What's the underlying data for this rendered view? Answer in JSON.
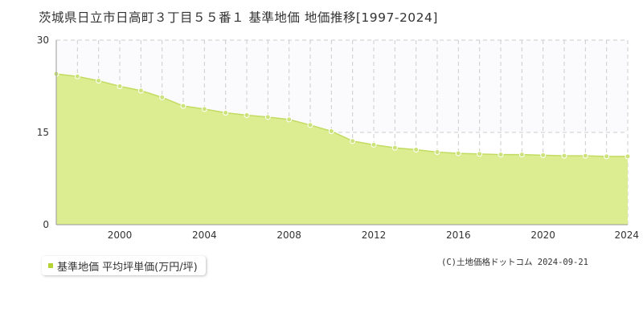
{
  "title": "茨城県日立市日高町３丁目５５番１ 基準地価 地価推移[1997-2024]",
  "legend": {
    "label": "基準地価 平均坪単価(万円/坪)",
    "color": "#b5d334"
  },
  "copyright": "(C)土地価格ドットコム 2024-09-21",
  "colors": {
    "area_fill": "#dcec91",
    "line": "#c2dc62",
    "point": "#cbe37a",
    "grid": "#cccccc"
  },
  "chart_data": {
    "type": "area",
    "title": "",
    "xlabel": "",
    "ylabel": "",
    "xlim": [
      1997,
      2024
    ],
    "ylim": [
      0,
      30
    ],
    "yticks": [
      0,
      15,
      30
    ],
    "xticks": [
      2000,
      2004,
      2008,
      2012,
      2016,
      2020,
      2024
    ],
    "grid": true,
    "legend_position": "bottom-left",
    "series": [
      {
        "name": "基準地価 平均坪単価(万円/坪)",
        "x": [
          1997,
          1998,
          1999,
          2000,
          2001,
          2002,
          2003,
          2004,
          2005,
          2006,
          2007,
          2008,
          2009,
          2010,
          2011,
          2012,
          2013,
          2014,
          2015,
          2016,
          2017,
          2018,
          2019,
          2020,
          2021,
          2022,
          2023,
          2024
        ],
        "values": [
          24.5,
          24.1,
          23.4,
          22.5,
          21.8,
          20.7,
          19.3,
          18.8,
          18.2,
          17.8,
          17.5,
          17.1,
          16.2,
          15.2,
          13.6,
          13.0,
          12.5,
          12.2,
          11.8,
          11.6,
          11.5,
          11.4,
          11.4,
          11.3,
          11.2,
          11.2,
          11.1,
          11.1
        ]
      }
    ]
  }
}
